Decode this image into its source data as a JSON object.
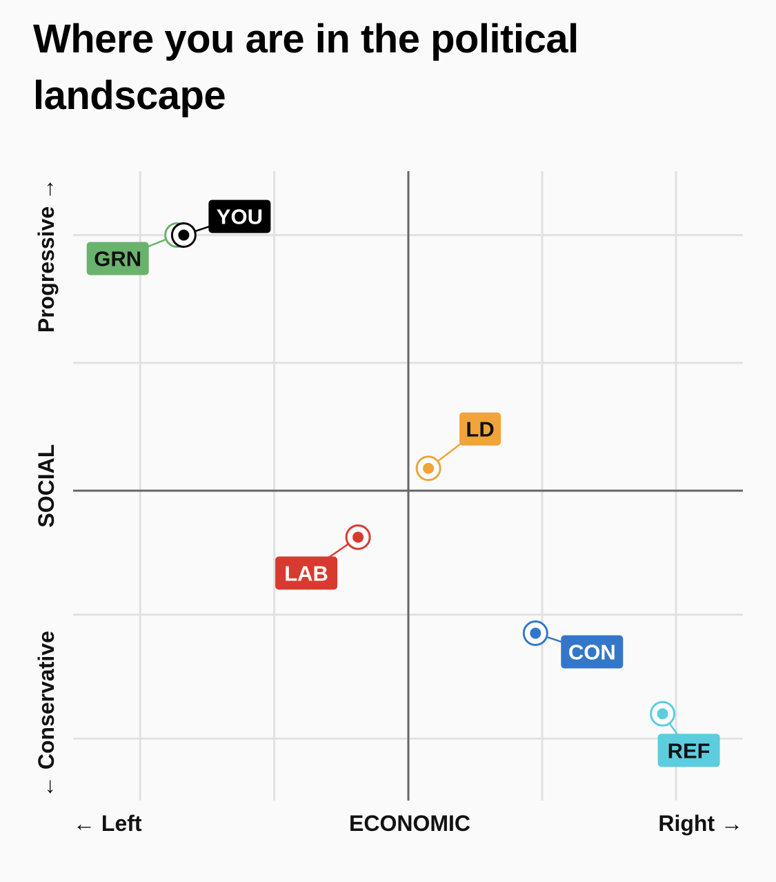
{
  "title": "Where you are in the political landscape",
  "chart_data": {
    "type": "scatter",
    "xlabel": "ECONOMIC",
    "ylabel": "SOCIAL",
    "x_left_label": "← Left",
    "x_right_label": "Right →",
    "y_top_label": "Progressive →",
    "y_bottom_label": "← Conservative",
    "xlim": [
      -1,
      1
    ],
    "ylim": [
      -1,
      1
    ],
    "grid": true,
    "points": [
      {
        "label": "GRN",
        "x": -0.69,
        "y": 0.8,
        "color": "#6ab36d",
        "text_color": "#111111"
      },
      {
        "label": "YOU",
        "x": -0.67,
        "y": 0.8,
        "color": "#000000",
        "text_color": "#ffffff"
      },
      {
        "label": "LD",
        "x": 0.06,
        "y": 0.07,
        "color": "#f0a43a",
        "text_color": "#111111"
      },
      {
        "label": "LAB",
        "x": -0.15,
        "y": -0.15,
        "color": "#d93a2f",
        "text_color": "#ffffff"
      },
      {
        "label": "CON",
        "x": 0.38,
        "y": -0.46,
        "color": "#3477c9",
        "text_color": "#ffffff"
      },
      {
        "label": "REF",
        "x": 0.76,
        "y": -0.72,
        "color": "#5ccddf",
        "text_color": "#111111"
      }
    ]
  }
}
